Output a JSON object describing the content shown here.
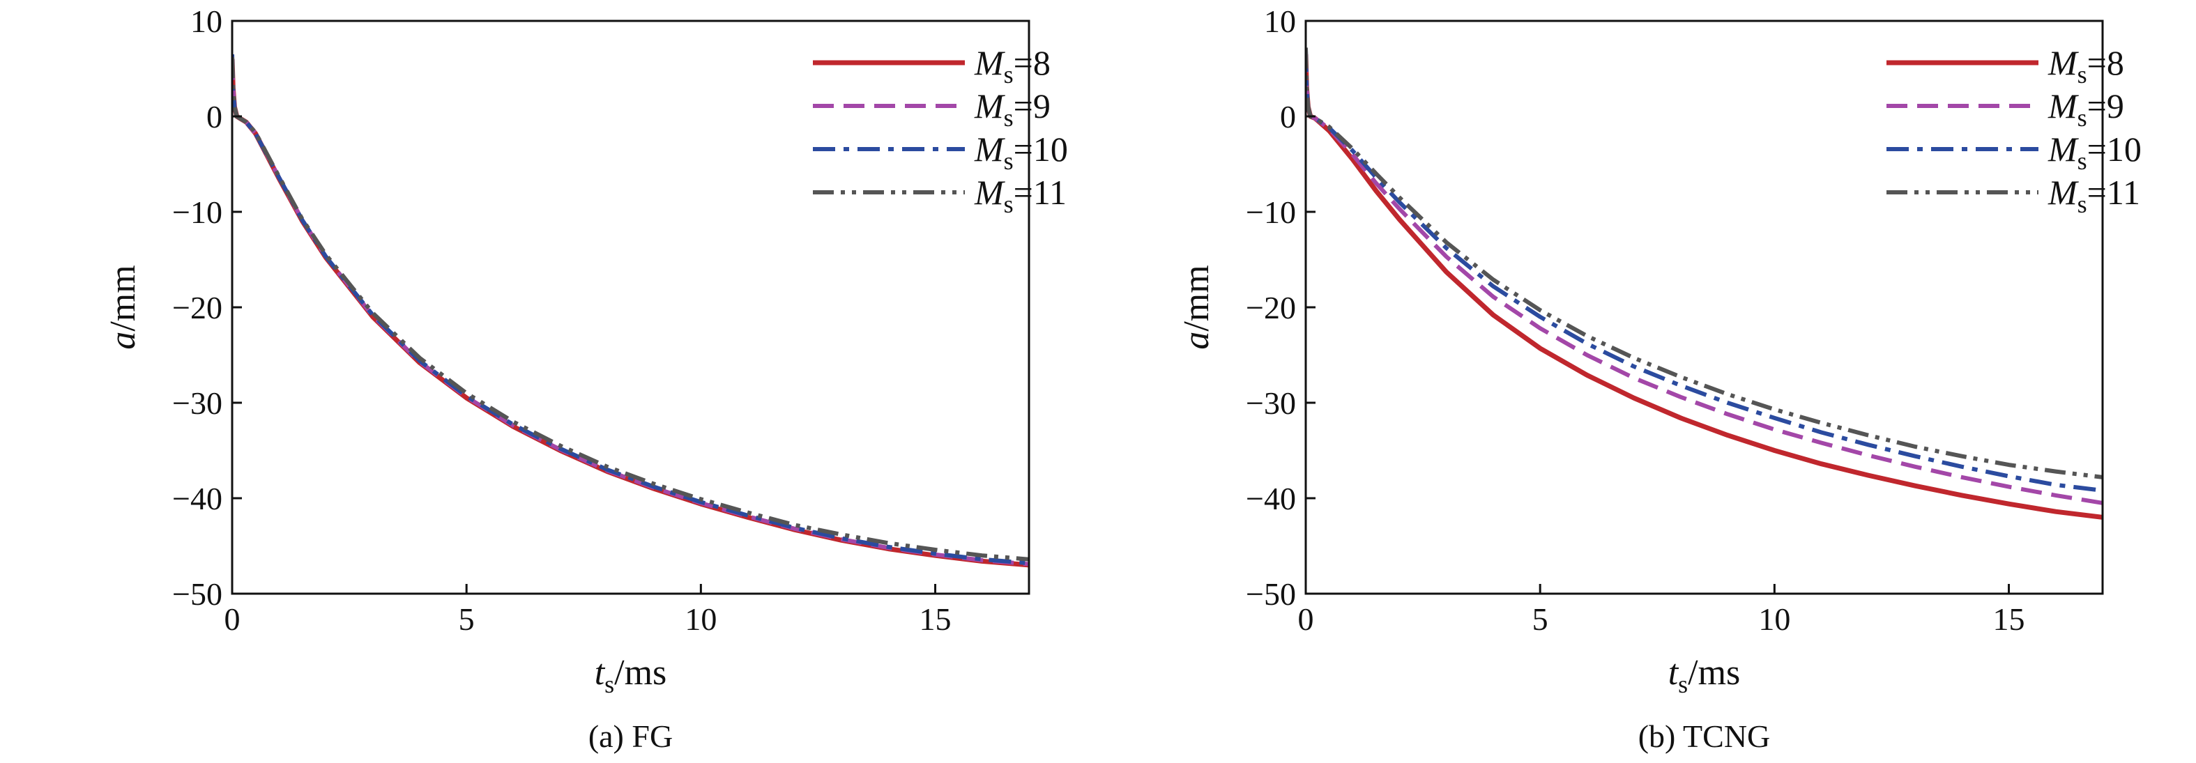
{
  "chart_data": [
    {
      "type": "line",
      "caption": "(a) FG",
      "xlabel": {
        "var": "t",
        "sub": "s",
        "unit": "/ms"
      },
      "ylabel": {
        "var": "a",
        "unit": "/mm"
      },
      "xlim": [
        0,
        17
      ],
      "ylim": [
        -50,
        10
      ],
      "xticks": [
        0,
        5,
        10,
        15
      ],
      "yticks": [
        10,
        0,
        -10,
        -20,
        -30,
        -40,
        -50
      ],
      "xtick_labels": [
        "0",
        "5",
        "10",
        "15"
      ],
      "ytick_labels": [
        "10",
        "0",
        "−10",
        "−20",
        "−30",
        "−40",
        "−50"
      ],
      "grid": false,
      "legend": "top-right",
      "series": [
        {
          "name": "M_s=8",
          "label_var": "M",
          "label_sub": "s",
          "label_val": "=8",
          "color": "#c0272d",
          "dash": "solid",
          "x": [
            0,
            0.02,
            0.05,
            0.1,
            0.2,
            0.3,
            0.5,
            1,
            1.5,
            2,
            3,
            4,
            5,
            6,
            7,
            8,
            9,
            10,
            11,
            12,
            13,
            14,
            15,
            16,
            17
          ],
          "y": [
            6,
            3,
            1,
            0,
            -0.3,
            -0.6,
            -1.8,
            -6.5,
            -11,
            -14.8,
            -21,
            -25.8,
            -29.5,
            -32.5,
            -35,
            -37.2,
            -39,
            -40.6,
            -42,
            -43.3,
            -44.4,
            -45.3,
            -46,
            -46.6,
            -47
          ]
        },
        {
          "name": "M_s=9",
          "label_var": "M",
          "label_sub": "s",
          "label_val": "=9",
          "color": "#a347a8",
          "dash": "dashed",
          "x": [
            0,
            0.02,
            0.05,
            0.1,
            0.2,
            0.3,
            0.5,
            1,
            1.5,
            2,
            3,
            4,
            5,
            6,
            7,
            8,
            9,
            10,
            11,
            12,
            13,
            14,
            15,
            16,
            17
          ],
          "y": [
            6,
            3,
            1,
            0,
            -0.3,
            -0.6,
            -1.8,
            -6.4,
            -10.9,
            -14.7,
            -20.9,
            -25.7,
            -29.4,
            -32.4,
            -34.9,
            -37.1,
            -38.9,
            -40.5,
            -41.9,
            -43.2,
            -44.3,
            -45.2,
            -45.9,
            -46.5,
            -46.9
          ]
        },
        {
          "name": "M_s=10",
          "label_var": "M",
          "label_sub": "s",
          "label_val": "=10",
          "color": "#2b4b9f",
          "dash": "dashdot",
          "x": [
            0,
            0.02,
            0.05,
            0.1,
            0.2,
            0.3,
            0.5,
            1,
            1.5,
            2,
            3,
            4,
            5,
            6,
            7,
            8,
            9,
            10,
            11,
            12,
            13,
            14,
            15,
            16,
            17
          ],
          "y": [
            6.5,
            3,
            1,
            0,
            -0.3,
            -0.6,
            -1.8,
            -6.4,
            -10.9,
            -14.7,
            -20.8,
            -25.6,
            -29.3,
            -32.3,
            -34.8,
            -37,
            -38.8,
            -40.4,
            -41.8,
            -43.1,
            -44.2,
            -45.1,
            -45.8,
            -46.4,
            -46.8
          ]
        },
        {
          "name": "M_s=11",
          "label_var": "M",
          "label_sub": "s",
          "label_val": "=11",
          "color": "#555555",
          "dash": "dashdotdot",
          "x": [
            0,
            0.02,
            0.05,
            0.1,
            0.2,
            0.3,
            0.5,
            1,
            1.5,
            2,
            3,
            4,
            5,
            6,
            7,
            8,
            9,
            10,
            11,
            12,
            13,
            14,
            15,
            16,
            17
          ],
          "y": [
            6.2,
            3,
            1,
            0,
            -0.3,
            -0.6,
            -1.7,
            -6.3,
            -10.8,
            -14.5,
            -20.6,
            -25.3,
            -29,
            -32,
            -34.5,
            -36.7,
            -38.5,
            -40.1,
            -41.5,
            -42.8,
            -43.8,
            -44.7,
            -45.4,
            -46,
            -46.4
          ]
        }
      ]
    },
    {
      "type": "line",
      "caption": "(b) TCNG",
      "xlabel": {
        "var": "t",
        "sub": "s",
        "unit": "/ms"
      },
      "ylabel": {
        "var": "a",
        "unit": "/mm"
      },
      "xlim": [
        0,
        17
      ],
      "ylim": [
        -50,
        10
      ],
      "xticks": [
        0,
        5,
        10,
        15
      ],
      "yticks": [
        10,
        0,
        -10,
        -20,
        -30,
        -40,
        -50
      ],
      "xtick_labels": [
        "0",
        "5",
        "10",
        "15"
      ],
      "ytick_labels": [
        "10",
        "0",
        "−10",
        "−20",
        "−30",
        "−40",
        "−50"
      ],
      "grid": false,
      "legend": "top-right",
      "series": [
        {
          "name": "M_s=8",
          "label_var": "M",
          "label_sub": "s",
          "label_val": "=8",
          "color": "#c0272d",
          "dash": "solid",
          "x": [
            0,
            0.02,
            0.05,
            0.1,
            0.2,
            0.5,
            1,
            1.5,
            2,
            3,
            4,
            5,
            6,
            7,
            8,
            9,
            10,
            11,
            12,
            13,
            14,
            15,
            16,
            17
          ],
          "y": [
            6.5,
            3,
            1,
            0,
            -0.2,
            -1.5,
            -4.5,
            -7.8,
            -10.8,
            -16.3,
            -20.8,
            -24.3,
            -27.1,
            -29.5,
            -31.6,
            -33.4,
            -35,
            -36.4,
            -37.6,
            -38.7,
            -39.7,
            -40.6,
            -41.4,
            -42
          ]
        },
        {
          "name": "M_s=9",
          "label_var": "M",
          "label_sub": "s",
          "label_val": "=9",
          "color": "#a347a8",
          "dash": "dashed",
          "x": [
            0,
            0.02,
            0.05,
            0.1,
            0.2,
            0.5,
            1,
            1.5,
            2,
            3,
            4,
            5,
            6,
            7,
            8,
            9,
            10,
            11,
            12,
            13,
            14,
            15,
            16,
            17
          ],
          "y": [
            6.8,
            3,
            1,
            0,
            -0.2,
            -1.3,
            -4,
            -7,
            -9.7,
            -14.7,
            -18.9,
            -22.2,
            -25,
            -27.4,
            -29.4,
            -31.2,
            -32.8,
            -34.2,
            -35.5,
            -36.7,
            -37.8,
            -38.8,
            -39.7,
            -40.5
          ]
        },
        {
          "name": "M_s=10",
          "label_var": "M",
          "label_sub": "s",
          "label_val": "=10",
          "color": "#2b4b9f",
          "dash": "dashdot",
          "x": [
            0,
            0.02,
            0.05,
            0.1,
            0.2,
            0.5,
            1,
            1.5,
            2,
            3,
            4,
            5,
            6,
            7,
            8,
            9,
            10,
            11,
            12,
            13,
            14,
            15,
            16,
            17
          ],
          "y": [
            7,
            3,
            1,
            0,
            -0.2,
            -1.2,
            -3.6,
            -6.4,
            -9,
            -13.8,
            -17.8,
            -21,
            -23.8,
            -26.2,
            -28.2,
            -30,
            -31.6,
            -33.1,
            -34.4,
            -35.6,
            -36.7,
            -37.7,
            -38.6,
            -39.2
          ]
        },
        {
          "name": "M_s=11",
          "label_var": "M",
          "label_sub": "s",
          "label_val": "=11",
          "color": "#555555",
          "dash": "dashdotdot",
          "x": [
            0,
            0.02,
            0.05,
            0.1,
            0.2,
            0.5,
            1,
            1.5,
            2,
            3,
            4,
            5,
            6,
            7,
            8,
            9,
            10,
            11,
            12,
            13,
            14,
            15,
            16,
            17
          ],
          "y": [
            7.2,
            3,
            1,
            0,
            -0.2,
            -1.1,
            -3.4,
            -6,
            -8.5,
            -13.2,
            -17.1,
            -20.3,
            -23,
            -25.3,
            -27.3,
            -29.1,
            -30.7,
            -32.1,
            -33.4,
            -34.6,
            -35.6,
            -36.5,
            -37.2,
            -37.8
          ]
        }
      ]
    }
  ]
}
